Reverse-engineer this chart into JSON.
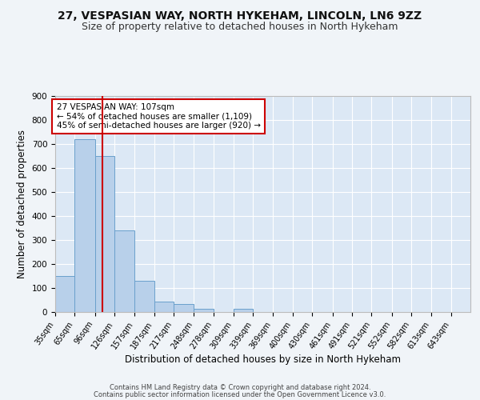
{
  "title1": "27, VESPASIAN WAY, NORTH HYKEHAM, LINCOLN, LN6 9ZZ",
  "title2": "Size of property relative to detached houses in North Hykeham",
  "xlabel": "Distribution of detached houses by size in North Hykeham",
  "ylabel": "Number of detached properties",
  "categories": [
    "35sqm",
    "65sqm",
    "96sqm",
    "126sqm",
    "157sqm",
    "187sqm",
    "217sqm",
    "248sqm",
    "278sqm",
    "309sqm",
    "339sqm",
    "369sqm",
    "400sqm",
    "430sqm",
    "461sqm",
    "491sqm",
    "521sqm",
    "552sqm",
    "582sqm",
    "613sqm",
    "643sqm"
  ],
  "bar_edges": [
    35,
    65,
    96,
    126,
    157,
    187,
    217,
    248,
    278,
    309,
    339,
    369,
    400,
    430,
    461,
    491,
    521,
    552,
    582,
    613,
    643
  ],
  "bar_heights": [
    150,
    720,
    650,
    340,
    130,
    42,
    32,
    15,
    0,
    12,
    0,
    0,
    0,
    0,
    0,
    0,
    0,
    0,
    0,
    0
  ],
  "bar_color": "#b8d0ea",
  "bar_edge_color": "#6aa0cc",
  "background_color": "#dce8f5",
  "grid_color": "#ffffff",
  "red_line_x": 107,
  "red_line_color": "#cc0000",
  "annotation_text": "27 VESPASIAN WAY: 107sqm\n← 54% of detached houses are smaller (1,109)\n45% of semi-detached houses are larger (920) →",
  "annotation_box_color": "#ffffff",
  "annotation_box_edge": "#cc0000",
  "ylim": [
    0,
    900
  ],
  "yticks": [
    0,
    100,
    200,
    300,
    400,
    500,
    600,
    700,
    800,
    900
  ],
  "footer1": "Contains HM Land Registry data © Crown copyright and database right 2024.",
  "footer2": "Contains public sector information licensed under the Open Government Licence v3.0.",
  "title1_fontsize": 10,
  "title2_fontsize": 9,
  "axis_label_fontsize": 8.5,
  "tick_fontsize": 7.5,
  "ann_fontsize": 7.5
}
